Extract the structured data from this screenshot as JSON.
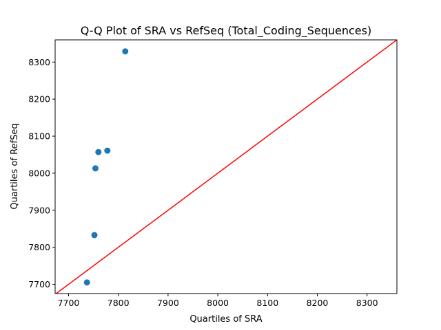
{
  "chart_data": {
    "type": "scatter",
    "title": "Q-Q Plot of SRA vs RefSeq (Total_Coding_Sequences)",
    "xlabel": "Quartiles of SRA",
    "ylabel": "Quartiles of RefSeq",
    "xlim": [
      7673,
      8360
    ],
    "ylim": [
      7675,
      8360
    ],
    "xticks": [
      7700,
      7800,
      7900,
      8000,
      8100,
      8200,
      8300
    ],
    "yticks": [
      7700,
      7800,
      7900,
      8000,
      8100,
      8200,
      8300
    ],
    "grid": false,
    "legend": "none",
    "series": [
      {
        "points": [
          {
            "x": 7737,
            "y": 7705
          },
          {
            "x": 7752,
            "y": 7833
          },
          {
            "x": 7754,
            "y": 8013
          },
          {
            "x": 7760,
            "y": 8057
          },
          {
            "x": 7778,
            "y": 8061
          },
          {
            "x": 7814,
            "y": 8329
          }
        ],
        "color": "#1f77b4"
      }
    ],
    "reference_line": {
      "type": "y=x",
      "color": "#ff0000"
    }
  }
}
